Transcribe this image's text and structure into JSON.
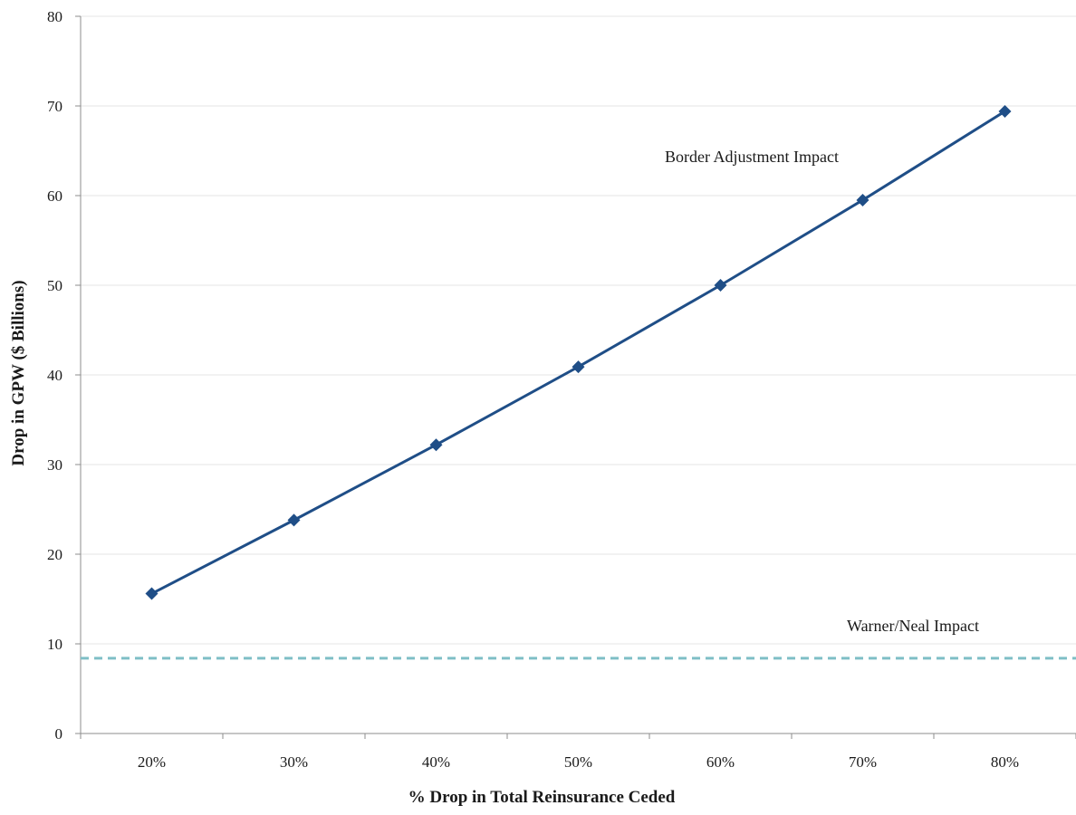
{
  "chart_data": {
    "type": "line",
    "title": "",
    "xlabel": "% Drop in Total Reinsurance Ceded",
    "ylabel": "Drop in GPW ($ Billions)",
    "categories": [
      "20%",
      "30%",
      "40%",
      "50%",
      "60%",
      "70%",
      "80%"
    ],
    "ylim": [
      0,
      80
    ],
    "yticks": [
      0,
      10,
      20,
      30,
      40,
      50,
      60,
      70,
      80
    ],
    "grid": true,
    "legend": "none",
    "series": [
      {
        "name": "Border Adjustment Impact",
        "values": [
          15.6,
          23.8,
          32.2,
          40.9,
          50.0,
          59.5,
          69.4
        ],
        "color": "#1f4e87",
        "marker": "diamond",
        "line_style": "solid"
      },
      {
        "name": "Warner/Neal Impact",
        "values": [
          8.4,
          8.4,
          8.4,
          8.4,
          8.4,
          8.4,
          8.4
        ],
        "color": "#7fbfc6",
        "marker": "none",
        "line_style": "dashed"
      }
    ],
    "annotations": [
      {
        "text": "Border Adjustment Impact",
        "series": 0
      },
      {
        "text": "Warner/Neal Impact",
        "series": 1
      }
    ],
    "colors": {
      "grid": "#e6e6e6",
      "axis": "#8c8c8c"
    }
  }
}
